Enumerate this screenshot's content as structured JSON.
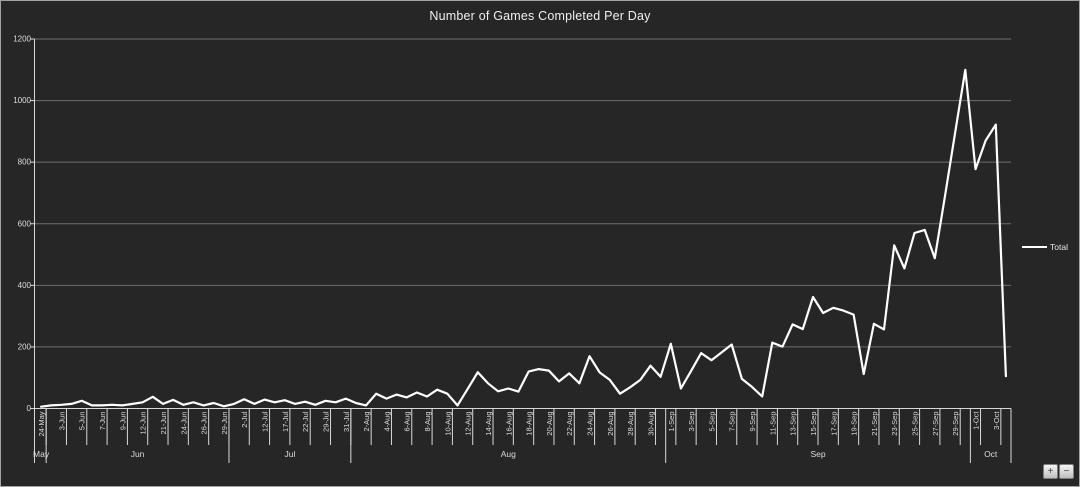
{
  "title": "Number of Games Completed Per Day",
  "legend": {
    "label": "Total"
  },
  "controls": {
    "zoom_in": "+",
    "zoom_out": "−"
  },
  "colors": {
    "background": "#262626",
    "series": "#ffffff",
    "gridline": "#6e6e6e",
    "axis": "#d9d9d9",
    "text": "#dcdcdc",
    "border": "#a3a3a3"
  },
  "chart_data": {
    "type": "line",
    "title": "Number of Games Completed Per Day",
    "xlabel": "",
    "ylabel": "",
    "grid": true,
    "legend_position": "right",
    "y_axis": {
      "min": 0,
      "max": 1200,
      "step": 200,
      "ticks": [
        0,
        200,
        400,
        600,
        800,
        1000,
        1200
      ]
    },
    "label_every": 2,
    "tick_labels": [
      "24-May",
      "3-Jun",
      "5-Jun",
      "7-Jun",
      "9-Jun",
      "12-Jun",
      "21-Jun",
      "24-Jun",
      "26-Jun",
      "29-Jun",
      "2-Jul",
      "12-Jul",
      "17-Jul",
      "22-Jul",
      "29-Jul",
      "31-Jul",
      "2-Aug",
      "4-Aug",
      "6-Aug",
      "8-Aug",
      "10-Aug",
      "12-Aug",
      "14-Aug",
      "16-Aug",
      "18-Aug",
      "20-Aug",
      "22-Aug",
      "24-Aug",
      "26-Aug",
      "28-Aug",
      "30-Aug",
      "1-Sep",
      "3-Sep",
      "5-Sep",
      "7-Sep",
      "9-Sep",
      "11-Sep",
      "13-Sep",
      "15-Sep",
      "17-Sep",
      "19-Sep",
      "21-Sep",
      "23-Sep",
      "25-Sep",
      "27-Sep",
      "29-Sep",
      "1-Oct",
      "3-Oct"
    ],
    "month_groups": [
      {
        "label": "May",
        "points": 1
      },
      {
        "label": "Jun",
        "points": 18
      },
      {
        "label": "Jul",
        "points": 12
      },
      {
        "label": "Aug",
        "points": 31
      },
      {
        "label": "Sep",
        "points": 30
      },
      {
        "label": "Oct",
        "points": 4
      }
    ],
    "series": [
      {
        "name": "Total",
        "values": [
          6,
          10,
          12,
          15,
          25,
          10,
          10,
          12,
          10,
          15,
          20,
          38,
          15,
          28,
          12,
          20,
          10,
          18,
          7,
          15,
          30,
          15,
          29,
          20,
          27,
          15,
          22,
          12,
          25,
          20,
          32,
          18,
          10,
          48,
          32,
          45,
          36,
          52,
          39,
          61,
          48,
          10,
          63,
          118,
          82,
          56,
          65,
          55,
          120,
          128,
          123,
          88,
          114,
          82,
          170,
          117,
          93,
          48,
          69,
          93,
          139,
          103,
          210,
          65,
          122,
          180,
          157,
          182,
          208,
          96,
          70,
          39,
          214,
          201,
          273,
          258,
          362,
          310,
          327,
          318,
          305,
          112,
          275,
          257,
          530,
          455,
          570,
          580,
          488,
          690,
          895,
          1100,
          777,
          870,
          922,
          105
        ]
      }
    ]
  }
}
